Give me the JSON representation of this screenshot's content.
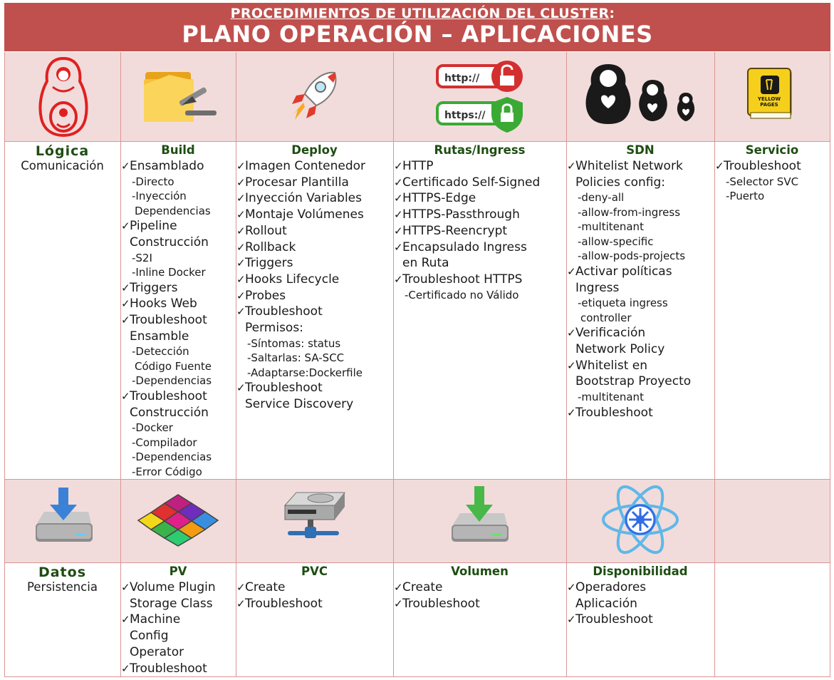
{
  "header": {
    "subtitle": "PROCEDIMIENTOS DE UTILIZACIÓN DEL CLUSTER",
    "subtitle_colon": ":",
    "title": "PLANO OPERACIÓN – APLICACIONES"
  },
  "section1": {
    "label_title": "Lógica",
    "label_sub": "Comunicación",
    "icons": [
      "matryoshka-red-icon",
      "folder-tools-icon",
      "rocket-icon",
      "http-https-lock-icon",
      "matryoshka-family-icon",
      "yellow-pages-icon"
    ],
    "build": {
      "title": "Build",
      "items": [
        {
          "text": "Ensamblado",
          "subs": [
            "-Directo",
            "-Inyección",
            " Dependencias"
          ]
        },
        {
          "text": "Pipeline",
          "cont": [
            "Construcción"
          ],
          "subs": [
            "-S2I",
            "-Inline Docker"
          ]
        },
        {
          "text": "Triggers",
          "subs": []
        },
        {
          "text": "Hooks Web",
          "subs": []
        },
        {
          "text": "Troubleshoot",
          "cont": [
            "Ensamble"
          ],
          "subs": [
            "-Detección",
            "Código Fuente",
            "-Dependencias"
          ]
        },
        {
          "text": "Troubleshoot",
          "cont": [
            "Construcción"
          ],
          "subs": [
            "-Docker",
            "-Compilador",
            "-Dependencias",
            "-Error Código"
          ]
        }
      ]
    },
    "deploy": {
      "title": "Deploy",
      "items": [
        {
          "text": "Imagen Contenedor",
          "subs": []
        },
        {
          "text": "Procesar Plantilla",
          "subs": []
        },
        {
          "text": "Inyección Variables",
          "subs": []
        },
        {
          "text": "Montaje Volúmenes",
          "subs": []
        },
        {
          "text": "Rollout",
          "subs": []
        },
        {
          "text": "Rollback",
          "subs": []
        },
        {
          "text": "Triggers",
          "subs": []
        },
        {
          "text": "Hooks Lifecycle",
          "subs": []
        },
        {
          "text": "Probes",
          "subs": []
        },
        {
          "text": "Troubleshoot",
          "cont": [
            "Permisos:"
          ],
          "subs": [
            "-Síntomas: status",
            "-Saltarlas: SA-SCC",
            "-Adaptarse:Dockerfile"
          ]
        },
        {
          "text": "Troubleshoot",
          "cont": [
            "Service Discovery"
          ],
          "subs": []
        }
      ]
    },
    "rutas": {
      "title": "Rutas/Ingress",
      "items": [
        {
          "text": "HTTP",
          "subs": []
        },
        {
          "text": "Certificado Self-Signed",
          "subs": []
        },
        {
          "text": "HTTPS-Edge",
          "subs": []
        },
        {
          "text": "HTTPS-Passthrough",
          "subs": []
        },
        {
          "text": "HTTPS-Reencrypt",
          "subs": []
        },
        {
          "text": "Encapsulado Ingress",
          "cont": [
            "en Ruta"
          ],
          "subs": []
        },
        {
          "text": "Troubleshoot HTTPS",
          "subs": [
            "-Certificado no Válido"
          ]
        }
      ]
    },
    "sdn": {
      "title": "SDN",
      "items": [
        {
          "text": "Whitelist Network",
          "cont": [
            "Policies config:"
          ],
          "subs": [
            "-deny-all",
            "-allow-from-ingress",
            "-multitenant",
            "-allow-specific",
            "-allow-pods-projects"
          ]
        },
        {
          "text": "Activar políticas",
          "cont": [
            "Ingress"
          ],
          "subs": [
            "-etiqueta ingress",
            "controller"
          ]
        },
        {
          "text": "Verificación",
          "cont": [
            "Network Policy"
          ],
          "subs": []
        },
        {
          "text": "Whitelist en",
          "cont": [
            "Bootstrap Proyecto"
          ],
          "subs": [
            "-multitenant"
          ]
        },
        {
          "text": "Troubleshoot",
          "subs": []
        }
      ]
    },
    "servicio": {
      "title": "Servicio",
      "items": [
        {
          "text": "Troubleshoot",
          "subs": [
            "-Selector SVC",
            "-Puerto"
          ]
        }
      ]
    }
  },
  "section2": {
    "label_title": "Datos",
    "label_sub": "Persistencia",
    "icons": [
      "disk-download-icon",
      "color-grid-icon",
      "network-storage-icon",
      "disk-download-green-icon",
      "kubernetes-atom-icon"
    ],
    "pv": {
      "title": "PV",
      "items": [
        {
          "text": "Volume Plugin",
          "cont": [
            "Storage Class"
          ],
          "subs": []
        },
        {
          "text": "Machine",
          "cont": [
            "Config",
            "Operator"
          ],
          "subs": []
        },
        {
          "text": "Troubleshoot",
          "subs": []
        }
      ]
    },
    "pvc": {
      "title": "PVC",
      "items": [
        {
          "text": "Create",
          "subs": []
        },
        {
          "text": "Troubleshoot",
          "subs": []
        }
      ]
    },
    "volumen": {
      "title": "Volumen",
      "items": [
        {
          "text": "Create",
          "subs": []
        },
        {
          "text": "Troubleshoot",
          "subs": []
        }
      ]
    },
    "disponibilidad": {
      "title": "Disponibilidad",
      "items": [
        {
          "text": "Operadores",
          "cont": [
            "Aplicación"
          ],
          "subs": []
        },
        {
          "text": "Troubleshoot",
          "subs": []
        }
      ]
    }
  },
  "colors": {
    "header_bg": "#c0504d",
    "band_bg": "#f2dcdb",
    "grid_line": "#d99694",
    "title_green": "#1e4d12"
  }
}
